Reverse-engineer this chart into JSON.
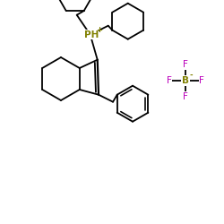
{
  "background_color": "#ffffff",
  "bond_color": "#000000",
  "P_color": "#808000",
  "B_color": "#808000",
  "F_color": "#bb00bb",
  "P_label": "PH",
  "P_charge": "+",
  "B_label": "B",
  "B_charge": "-",
  "F_label": "F",
  "line_width": 1.3,
  "figsize": [
    2.5,
    2.5
  ],
  "dpi": 100
}
